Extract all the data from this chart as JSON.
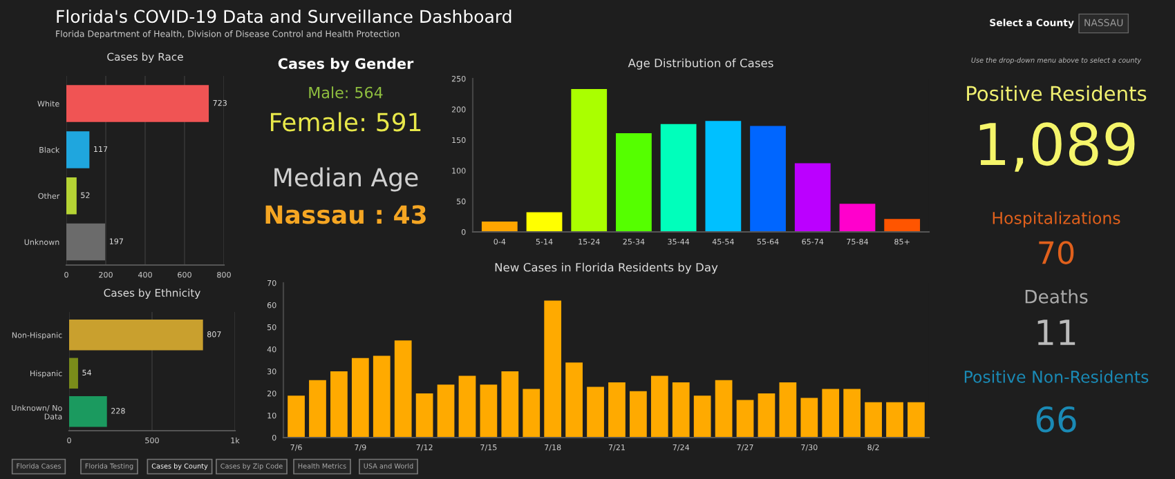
{
  "chart_data": [
    {
      "type": "other",
      "title": "Florida's COVID-19 Data and Surveillance Dashboard",
      "subtitle": "Florida Department of Health, Division of Disease Control and Health Protection",
      "annotations": [
        "Select a County",
        "NASSAU"
      ],
      "colors": [
        "#ffffff",
        "#9a9a9a"
      ]
    },
    {
      "type": "bar",
      "title": "Cases by Race",
      "orientation": "horizontal",
      "categories": [
        "White",
        "Black",
        "Other",
        "Unknown"
      ],
      "values": [
        723,
        117,
        52,
        197
      ],
      "colors": [
        "#f05454",
        "#1fa6de",
        "#b5d334",
        "#6b6b6b"
      ],
      "xlim": [
        0,
        800
      ],
      "xticks": [
        0,
        200,
        400,
        600,
        800
      ],
      "data_labels": true,
      "grid": "x"
    },
    {
      "type": "bar",
      "title": "Cases by Ethnicity",
      "orientation": "horizontal",
      "categories": [
        "Non-Hispanic",
        "Hispanic",
        "Unknown/ No Data"
      ],
      "values": [
        807,
        54,
        228
      ],
      "colors": [
        "#c9a02e",
        "#7a8c1a",
        "#1b9a5f"
      ],
      "xlim": [
        0,
        1000
      ],
      "xticks": [
        0,
        500,
        {
          "value": 1000,
          "label": "1k"
        }
      ],
      "data_labels": true,
      "grid": "x"
    },
    {
      "type": "other",
      "title": "Cases by Gender",
      "annotations": [
        "Male: 564",
        "Female: 591"
      ],
      "colors": [
        "#8fbf3f",
        "#e8e84a"
      ]
    },
    {
      "type": "other",
      "annotations": [
        "Median Age",
        "Nassau : 43"
      ],
      "colors": [
        "#d0d0d0",
        "#f5a623"
      ]
    },
    {
      "type": "bar",
      "title": "Age Distribution of Cases",
      "categories": [
        "0-4",
        "5-14",
        "15-24",
        "25-34",
        "35-44",
        "45-54",
        "55-64",
        "65-74",
        "75-84",
        "85+"
      ],
      "values": [
        17,
        32,
        233,
        161,
        176,
        181,
        173,
        112,
        46,
        21
      ],
      "colors": [
        "#ffa500",
        "#ffff00",
        "#aaff00",
        "#55ff00",
        "#00ffbb",
        "#00c0ff",
        "#0066ff",
        "#bb00ff",
        "#ff00cc",
        "#ff5500"
      ],
      "ylim": [
        0,
        250
      ],
      "yticks": [
        0,
        50,
        100,
        150,
        200,
        250
      ]
    },
    {
      "type": "bar",
      "title": "New Cases in Florida Residents by Day",
      "categories": [
        "7/6",
        null,
        null,
        "7/9",
        null,
        null,
        "7/12",
        null,
        null,
        "7/15",
        null,
        null,
        "7/18",
        null,
        null,
        "7/21",
        null,
        null,
        "7/24",
        null,
        null,
        "7/27",
        null,
        null,
        "7/30",
        null,
        null,
        "8/2",
        null,
        null
      ],
      "values": [
        19,
        26,
        30,
        36,
        37,
        44,
        20,
        24,
        28,
        24,
        30,
        22,
        62,
        34,
        23,
        25,
        21,
        28,
        25,
        19,
        26,
        17,
        20,
        25,
        18,
        22,
        22,
        16,
        16,
        16
      ],
      "color": "#ffaa00",
      "ylim": [
        0,
        70
      ],
      "yticks": [
        0,
        10,
        20,
        30,
        40,
        50,
        60,
        70
      ]
    },
    {
      "type": "other",
      "annotations": [
        "Use the drop-down menu above to select a county",
        "Positive Residents",
        "1,089",
        "Hospitalizations",
        "70",
        "Deaths",
        "11",
        "Positive Non-Residents",
        "66"
      ],
      "colors": [
        "#bbbbbb",
        "#f0f070",
        "#f5f56a",
        "#e0601c",
        "#e0601c",
        "#aaaaaa",
        "#bbbbbb",
        "#1a8ab5",
        "#1a8ab5"
      ]
    },
    {
      "type": "other",
      "annotations": [
        "Florida Cases",
        "Florida Testing",
        "Cases by County",
        "Cases by Zip Code",
        "Health Metrics",
        "USA and World"
      ],
      "colors": [
        "#aaaaaa",
        "#aaaaaa",
        "#ffffff",
        "#aaaaaa",
        "#aaaaaa",
        "#aaaaaa"
      ]
    }
  ]
}
